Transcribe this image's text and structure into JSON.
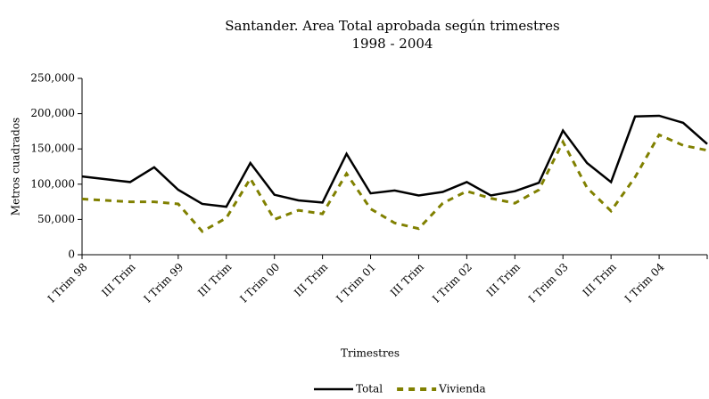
{
  "chart_data": {
    "type": "line",
    "title": [
      "Santander. Area Total aprobada según trimestres",
      "1998 - 2004"
    ],
    "y_label": "Metros cuadrados",
    "x_label": "Trimestres",
    "categories": [
      "I Trim 98",
      null,
      "III Trim",
      null,
      "I Trim 99",
      null,
      "III Trim",
      null,
      "I Trim 00",
      null,
      "III Trim",
      null,
      "I Trim 01",
      null,
      "III Trim",
      null,
      "I Trim 02",
      null,
      "III Trim",
      null,
      "I Trim 03",
      null,
      "III Trim",
      null,
      "I Trim 04",
      null,
      null
    ],
    "series": [
      {
        "name": "Total",
        "color": "#000000",
        "dash": false,
        "values": [
          111000,
          107000,
          103000,
          124000,
          92000,
          72000,
          68000,
          130000,
          85000,
          77000,
          74000,
          143000,
          87000,
          91000,
          84000,
          89000,
          103000,
          84000,
          90000,
          102000,
          176000,
          130000,
          103000,
          196000,
          197000,
          187000,
          157000
        ]
      },
      {
        "name": "Vivienda",
        "color": "#808000",
        "dash": true,
        "values": [
          79000,
          77000,
          75000,
          75000,
          72000,
          33000,
          52000,
          108000,
          50000,
          63000,
          58000,
          115000,
          65000,
          45000,
          37000,
          73000,
          90000,
          80000,
          73000,
          92000,
          160000,
          95000,
          62000,
          110000,
          170000,
          155000,
          148000
        ]
      }
    ],
    "ylim": [
      0,
      250000
    ],
    "yticks": [
      0,
      {
        "value": 50000,
        "label": "50,000"
      },
      {
        "value": 100000,
        "label": "100,000"
      },
      {
        "value": 150000,
        "label": "150,000"
      },
      {
        "value": 200000,
        "label": "200,000"
      },
      {
        "value": 250000,
        "label": "250,000"
      }
    ],
    "grid": false,
    "legend": "bottom"
  }
}
